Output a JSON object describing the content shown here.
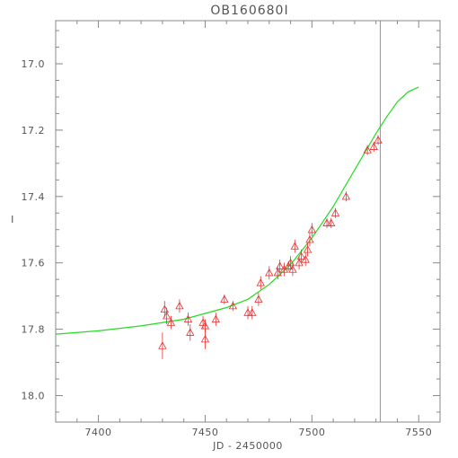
{
  "chart_data": {
    "type": "scatter",
    "title": "OB160680I",
    "xlabel": "JD - 2450000",
    "ylabel": "I",
    "xlim": [
      7380,
      7560
    ],
    "ylim": [
      18.08,
      16.87
    ],
    "y_inverted": true,
    "xticks": [
      7400,
      7450,
      7500,
      7550
    ],
    "xtick_labels": [
      "7400",
      "7450",
      "7500",
      "7550"
    ],
    "yticks": [
      17.0,
      17.2,
      17.4,
      17.6,
      17.8,
      18.0
    ],
    "ytick_labels": [
      "17.0",
      "17.2",
      "17.4",
      "17.6",
      "17.8",
      "18.0"
    ],
    "grid": false,
    "colors": {
      "points": "#e83030",
      "model": "#22dd22",
      "vline": "#8888dd",
      "axes": "#888888",
      "text": "#555555"
    },
    "vertical_line_x": 7532,
    "series": [
      {
        "kind": "points",
        "marker": "triangle-with-errorbar",
        "points": [
          {
            "x": 7430,
            "y": 17.85,
            "err": 0.04
          },
          {
            "x": 7431,
            "y": 17.74,
            "err": 0.025
          },
          {
            "x": 7432,
            "y": 17.76,
            "err": 0.025
          },
          {
            "x": 7434,
            "y": 17.78,
            "err": 0.02
          },
          {
            "x": 7438,
            "y": 17.73,
            "err": 0.02
          },
          {
            "x": 7442,
            "y": 17.77,
            "err": 0.02
          },
          {
            "x": 7443,
            "y": 17.81,
            "err": 0.025
          },
          {
            "x": 7449,
            "y": 17.78,
            "err": 0.02
          },
          {
            "x": 7450,
            "y": 17.79,
            "err": 0.02
          },
          {
            "x": 7450,
            "y": 17.83,
            "err": 0.03
          },
          {
            "x": 7455,
            "y": 17.77,
            "err": 0.02
          },
          {
            "x": 7459,
            "y": 17.71,
            "err": 0.015
          },
          {
            "x": 7463,
            "y": 17.73,
            "err": 0.015
          },
          {
            "x": 7470,
            "y": 17.75,
            "err": 0.02
          },
          {
            "x": 7472,
            "y": 17.75,
            "err": 0.02
          },
          {
            "x": 7475,
            "y": 17.71,
            "err": 0.02
          },
          {
            "x": 7476,
            "y": 17.66,
            "err": 0.02
          },
          {
            "x": 7480,
            "y": 17.63,
            "err": 0.02
          },
          {
            "x": 7484,
            "y": 17.63,
            "err": 0.02
          },
          {
            "x": 7485,
            "y": 17.61,
            "err": 0.02
          },
          {
            "x": 7487,
            "y": 17.62,
            "err": 0.02
          },
          {
            "x": 7489,
            "y": 17.61,
            "err": 0.015
          },
          {
            "x": 7490,
            "y": 17.6,
            "err": 0.02
          },
          {
            "x": 7491,
            "y": 17.62,
            "err": 0.02
          },
          {
            "x": 7492,
            "y": 17.55,
            "err": 0.02
          },
          {
            "x": 7494,
            "y": 17.6,
            "err": 0.02
          },
          {
            "x": 7495,
            "y": 17.58,
            "err": 0.02
          },
          {
            "x": 7497,
            "y": 17.59,
            "err": 0.02
          },
          {
            "x": 7498,
            "y": 17.56,
            "err": 0.02
          },
          {
            "x": 7499,
            "y": 17.53,
            "err": 0.02
          },
          {
            "x": 7500,
            "y": 17.5,
            "err": 0.02
          },
          {
            "x": 7507,
            "y": 17.48,
            "err": 0.015
          },
          {
            "x": 7509,
            "y": 17.48,
            "err": 0.015
          },
          {
            "x": 7511,
            "y": 17.45,
            "err": 0.015
          },
          {
            "x": 7516,
            "y": 17.4,
            "err": 0.015
          },
          {
            "x": 7526,
            "y": 17.26,
            "err": 0.015
          },
          {
            "x": 7529,
            "y": 17.25,
            "err": 0.015
          },
          {
            "x": 7531,
            "y": 17.23,
            "err": 0.015
          }
        ]
      },
      {
        "kind": "line",
        "points": [
          {
            "x": 7380,
            "y": 17.815
          },
          {
            "x": 7400,
            "y": 17.805
          },
          {
            "x": 7420,
            "y": 17.79
          },
          {
            "x": 7440,
            "y": 17.77
          },
          {
            "x": 7460,
            "y": 17.735
          },
          {
            "x": 7470,
            "y": 17.71
          },
          {
            "x": 7480,
            "y": 17.665
          },
          {
            "x": 7490,
            "y": 17.605
          },
          {
            "x": 7500,
            "y": 17.525
          },
          {
            "x": 7510,
            "y": 17.43
          },
          {
            "x": 7520,
            "y": 17.32
          },
          {
            "x": 7530,
            "y": 17.21
          },
          {
            "x": 7535,
            "y": 17.16
          },
          {
            "x": 7540,
            "y": 17.115
          },
          {
            "x": 7545,
            "y": 17.085
          },
          {
            "x": 7550,
            "y": 17.07
          }
        ]
      }
    ]
  }
}
